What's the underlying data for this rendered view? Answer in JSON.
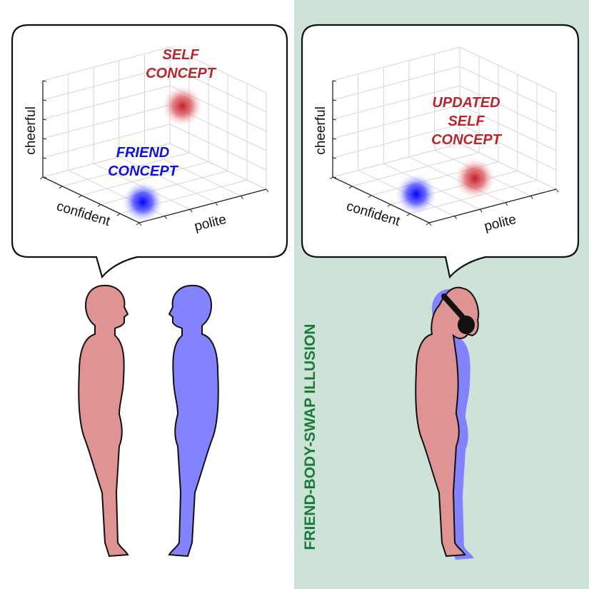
{
  "colors": {
    "self": "#b8262c",
    "friend": "#1010e0",
    "illusion_bg": "#cde3d8",
    "illusion_text": "#1a7a3a",
    "self_body": "#e09393",
    "friend_body": "#8383ff"
  },
  "left_panel": {
    "axes": {
      "vertical": "cheerful",
      "left": "confident",
      "right": "polite"
    },
    "self_label": [
      "SELF",
      "CONCEPT"
    ],
    "friend_label": [
      "FRIEND",
      "CONCEPT"
    ]
  },
  "right_panel": {
    "axes": {
      "vertical": "cheerful",
      "left": "confident",
      "right": "polite"
    },
    "self_label": [
      "UPDATED",
      "SELF",
      "CONCEPT"
    ],
    "illusion_title": "FRIEND-BODY-SWAP ILLUSION"
  }
}
